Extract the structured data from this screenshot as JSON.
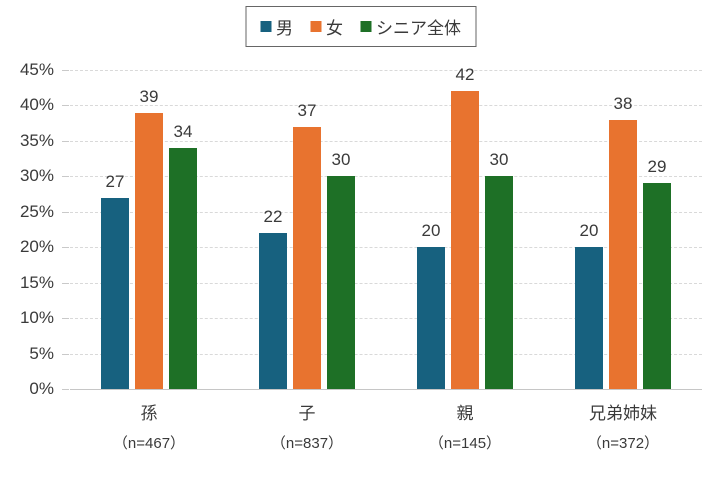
{
  "chart_data": {
    "type": "bar",
    "title": "",
    "categories": [
      "孫",
      "子",
      "親",
      "兄弟姉妹"
    ],
    "category_sublabels": [
      "（n=467）",
      "（n=837）",
      "（n=145）",
      "（n=372）"
    ],
    "series": [
      {
        "name": "男",
        "color": "#17617F",
        "values": [
          27,
          22,
          20,
          20
        ]
      },
      {
        "name": "女",
        "color": "#E8732F",
        "values": [
          39,
          37,
          42,
          38
        ]
      },
      {
        "name": "シニア全体",
        "color": "#1E7026",
        "values": [
          34,
          30,
          30,
          29
        ]
      }
    ],
    "xlabel": "",
    "ylabel": "",
    "y_axis": {
      "min": 0,
      "max": 45,
      "step": 5,
      "tick_labels": [
        "0%",
        "5%",
        "10%",
        "15%",
        "20%",
        "25%",
        "30%",
        "35%",
        "40%",
        "45%"
      ]
    },
    "grid": "horizontal-dashed",
    "legend_position": "top-center",
    "value_labels": true
  },
  "colors": {
    "text": "#3A3A3A",
    "gridline": "#D9D9D9",
    "axis_line": "#C6C6C6",
    "legend_border": "#666666",
    "background": "#FFFFFF"
  }
}
